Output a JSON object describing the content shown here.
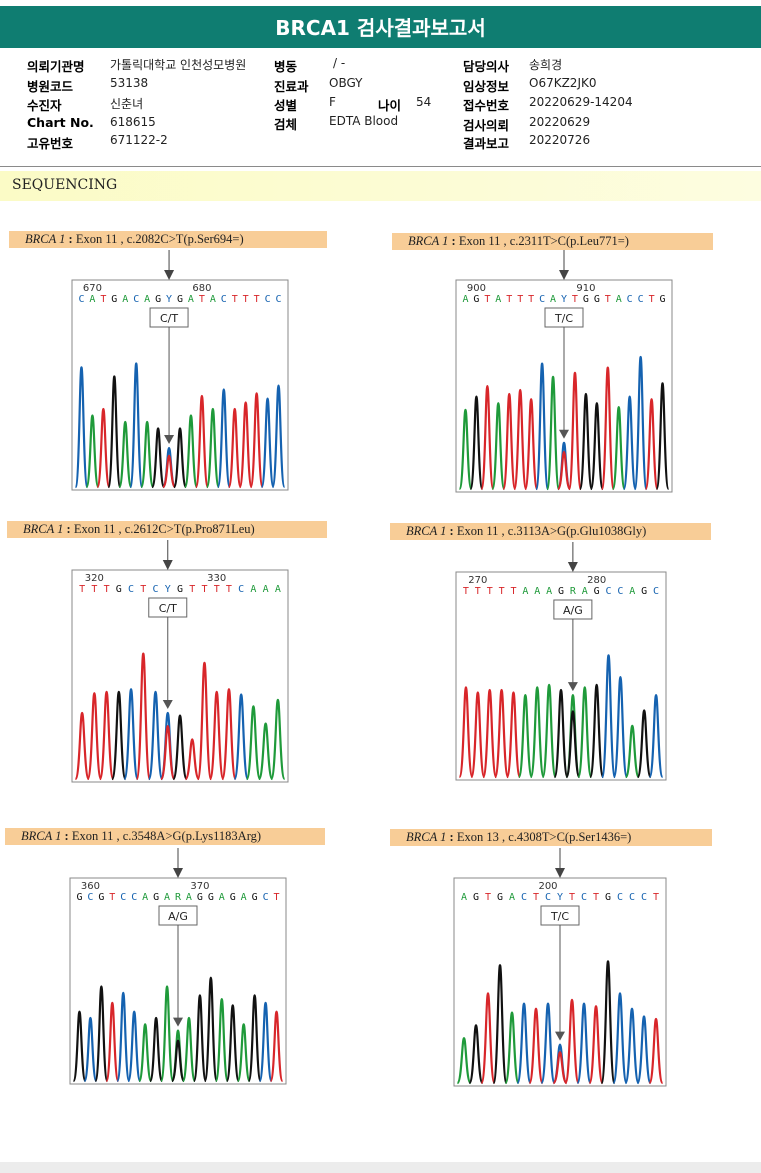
{
  "title": "BRCA1 검사결과보고서",
  "info": {
    "labels": {
      "institution": "의뢰기관명",
      "hospital_code": "병원코드",
      "examinee": "수진자",
      "chart_no": "Chart No.",
      "unique_no": "고유번호",
      "ward": "병동",
      "department": "진료과",
      "sex": "성별",
      "age": "나이",
      "specimen": "검체",
      "doctor": "담당의사",
      "clinical_info": "임상정보",
      "accession_no": "접수번호",
      "request_date": "검사의뢰",
      "report_date": "결과보고"
    },
    "values": {
      "institution": "가톨릭대학교 인천성모병원",
      "hospital_code": "53138",
      "examinee": "신춘녀",
      "chart_no": "618615",
      "unique_no": "671122-2",
      "ward": "/ -",
      "department": "OBGY",
      "sex": "F",
      "age": "54",
      "specimen": "EDTA Blood",
      "doctor": "송희경",
      "clinical_info": "O67KZ2JK0",
      "accession_no": "20220629-14204",
      "request_date": "20220629",
      "report_date": "20220726"
    }
  },
  "section_title": "SEQUENCING",
  "panels": [
    {
      "gene": "BRCA 1",
      "desc": "Exon 11 , c.2082C>T(p.Ser694=)",
      "call": "C/T",
      "pos_labels": [
        "670",
        "680"
      ],
      "sequence": "CATGACAGYGATACTTTCC",
      "peak_heights": [
        0.92,
        0.55,
        0.6,
        0.85,
        0.5,
        0.95,
        0.5,
        0.45,
        0.3,
        0.45,
        0.55,
        0.7,
        0.6,
        0.75,
        0.6,
        0.65,
        0.72,
        0.68,
        0.78
      ]
    },
    {
      "gene": "BRCA 1",
      "desc": "Exon 11 , c.2311T>C(p.Leu771=)",
      "call": "T/C",
      "pos_labels": [
        "900",
        "910"
      ],
      "sequence": "AGTATTTCAYTGGTACCTG",
      "peak_heights": [
        0.6,
        0.7,
        0.78,
        0.65,
        0.72,
        0.75,
        0.68,
        0.95,
        0.85,
        0.35,
        0.88,
        0.72,
        0.65,
        0.92,
        0.62,
        0.7,
        1.0,
        0.68,
        0.8
      ]
    },
    {
      "gene": "BRCA 1",
      "desc": "Exon 11 , c.2612C>T(p.Pro871Leu)",
      "call": "C/T",
      "pos_labels": [
        "320",
        "330"
      ],
      "sequence": "TTTGCTCYGTTTTCAAA",
      "peak_heights": [
        0.5,
        0.65,
        0.66,
        0.66,
        0.68,
        0.95,
        0.66,
        0.5,
        0.48,
        0.3,
        0.88,
        0.66,
        0.68,
        0.64,
        0.55,
        0.42,
        0.6
      ]
    },
    {
      "gene": "BRCA 1",
      "desc": "Exon 11 , c.3113A>G(p.Glu1038Gly)",
      "call": "A/G",
      "pos_labels": [
        "270",
        "280"
      ],
      "sequence": "TTTTTAAAGRAGCCAGC",
      "peak_heights": [
        0.7,
        0.66,
        0.68,
        0.68,
        0.66,
        0.64,
        0.7,
        0.72,
        0.68,
        0.64,
        0.7,
        0.72,
        0.95,
        0.78,
        0.4,
        0.52,
        0.64
      ]
    },
    {
      "gene": "BRCA 1",
      "desc": "Exon 11 , c.3548A>G(p.Lys1183Arg)",
      "call": "A/G",
      "pos_labels": [
        "360",
        "370"
      ],
      "sequence": "GCGTCCAGARAGGAGAGCT",
      "peak_heights": [
        0.55,
        0.5,
        0.75,
        0.62,
        0.7,
        0.55,
        0.45,
        0.5,
        0.75,
        0.4,
        0.5,
        0.68,
        0.82,
        0.65,
        0.6,
        0.45,
        0.68,
        0.62,
        0.55
      ]
    },
    {
      "gene": "BRCA 1",
      "desc": "Exon 13 , c.4308T>C(p.Ser1436=)",
      "call": "T/C",
      "pos_labels": [
        "200"
      ],
      "sequence": "AGTGACTCYTCTGCCCT",
      "peak_heights": [
        0.35,
        0.45,
        0.7,
        0.92,
        0.55,
        0.62,
        0.58,
        0.62,
        0.3,
        0.65,
        0.62,
        0.6,
        0.95,
        0.7,
        0.58,
        0.52,
        0.5
      ]
    }
  ],
  "colors": {
    "A": "#1f9a3a",
    "C": "#1562b0",
    "G": "#111111",
    "T": "#d8262a",
    "accent": "#0f7d71",
    "caption_bg": "#f8cd97"
  }
}
